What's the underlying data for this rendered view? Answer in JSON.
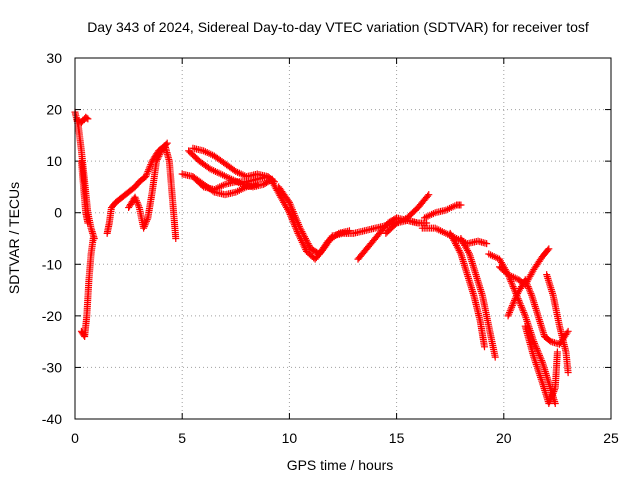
{
  "chart_data": {
    "type": "scatter",
    "title": "Day 343 of 2024, Sidereal Day-to-day VTEC variation (SDTVAR) for receiver tosf",
    "xlabel": "GPS time / hours",
    "ylabel": "SDTVAR / TECUs",
    "xlim": [
      0,
      25
    ],
    "ylim": [
      -40,
      30
    ],
    "xticks": [
      0,
      5,
      10,
      15,
      20,
      25
    ],
    "yticks": [
      -40,
      -30,
      -20,
      -10,
      0,
      10,
      20,
      30
    ],
    "grid": true,
    "marker": "plus",
    "series": [
      {
        "name": "SDTVAR",
        "color": "#ff0000",
        "tracks": [
          [
            [
              0.0,
              19.5
            ],
            [
              0.15,
              17
            ],
            [
              0.3,
              12
            ],
            [
              0.45,
              6
            ],
            [
              0.6,
              0
            ],
            [
              0.75,
              -3
            ],
            [
              0.9,
              -5
            ]
          ],
          [
            [
              0.1,
              18
            ],
            [
              0.3,
              17.5
            ],
            [
              0.5,
              18.5
            ],
            [
              0.6,
              18.2
            ]
          ],
          [
            [
              0.3,
              -23
            ],
            [
              0.45,
              -24
            ],
            [
              0.55,
              -20
            ],
            [
              0.65,
              -13
            ],
            [
              0.75,
              -8
            ],
            [
              0.85,
              -5
            ]
          ],
          [
            [
              0.3,
              10
            ],
            [
              0.4,
              5
            ],
            [
              0.5,
              0
            ],
            [
              0.6,
              -2
            ]
          ],
          [
            [
              1.5,
              -4
            ],
            [
              1.6,
              -2
            ],
            [
              1.7,
              1
            ],
            [
              1.9,
              2
            ],
            [
              2.2,
              3
            ],
            [
              2.5,
              4
            ],
            [
              2.8,
              5
            ],
            [
              3.0,
              6
            ],
            [
              3.3,
              7
            ],
            [
              3.6,
              10
            ],
            [
              3.9,
              12
            ],
            [
              4.2,
              13
            ],
            [
              4.4,
              10
            ],
            [
              4.5,
              5
            ],
            [
              4.6,
              0
            ],
            [
              4.7,
              -5
            ]
          ],
          [
            [
              2.5,
              1
            ],
            [
              2.8,
              3
            ],
            [
              3.0,
              1
            ],
            [
              3.2,
              -3
            ],
            [
              3.4,
              -1
            ],
            [
              3.6,
              4
            ],
            [
              3.8,
              10
            ],
            [
              4.1,
              12.5
            ],
            [
              4.3,
              13.5
            ]
          ],
          [
            [
              5.0,
              7.5
            ],
            [
              5.5,
              7
            ],
            [
              6.0,
              5
            ],
            [
              6.5,
              4.5
            ],
            [
              7.0,
              5.5
            ],
            [
              7.5,
              6
            ],
            [
              8.0,
              6
            ],
            [
              8.5,
              6.5
            ],
            [
              9.0,
              7
            ],
            [
              9.3,
              6
            ]
          ],
          [
            [
              5.3,
              12
            ],
            [
              5.8,
              10
            ],
            [
              6.3,
              8.5
            ],
            [
              6.8,
              7.5
            ],
            [
              7.3,
              6.5
            ],
            [
              7.8,
              5.5
            ],
            [
              8.3,
              5
            ],
            [
              8.8,
              5.5
            ],
            [
              9.2,
              6.5
            ]
          ],
          [
            [
              5.5,
              12.5
            ],
            [
              6.0,
              12
            ],
            [
              6.5,
              11
            ],
            [
              7.0,
              9.5
            ],
            [
              7.5,
              8
            ],
            [
              8.0,
              7
            ],
            [
              8.5,
              7.5
            ],
            [
              9.0,
              7
            ]
          ],
          [
            [
              5.5,
              7
            ],
            [
              6.0,
              5.5
            ],
            [
              6.5,
              4
            ],
            [
              7.0,
              3.5
            ],
            [
              7.5,
              4
            ],
            [
              8.0,
              5
            ],
            [
              8.5,
              5.5
            ]
          ],
          [
            [
              9.2,
              6
            ],
            [
              9.6,
              3
            ],
            [
              10.0,
              0
            ],
            [
              10.4,
              -4
            ],
            [
              10.8,
              -7.5
            ],
            [
              11.2,
              -9
            ],
            [
              11.6,
              -7
            ],
            [
              12.0,
              -4.5
            ],
            [
              12.5,
              -4
            ],
            [
              13.0,
              -4
            ],
            [
              13.5,
              -3.5
            ],
            [
              14.0,
              -3
            ],
            [
              14.5,
              -2.5
            ],
            [
              15.0,
              -2
            ],
            [
              15.5,
              -1.5
            ],
            [
              16.0,
              -2
            ]
          ],
          [
            [
              9.5,
              5
            ],
            [
              10.0,
              2
            ],
            [
              10.5,
              -3
            ],
            [
              11.0,
              -7
            ],
            [
              11.4,
              -8
            ],
            [
              11.8,
              -5.5
            ],
            [
              12.3,
              -4
            ],
            [
              12.8,
              -3.5
            ]
          ],
          [
            [
              13.2,
              -9
            ],
            [
              13.8,
              -6
            ],
            [
              14.2,
              -4
            ],
            [
              14.6,
              -2
            ],
            [
              15.0,
              -1
            ],
            [
              15.5,
              -1.5
            ],
            [
              16.0,
              -2
            ],
            [
              16.4,
              -2
            ]
          ],
          [
            [
              14.5,
              -4
            ],
            [
              15.0,
              -2
            ],
            [
              15.5,
              -1
            ],
            [
              16.0,
              1
            ],
            [
              16.5,
              3.5
            ]
          ],
          [
            [
              16.2,
              -3
            ],
            [
              16.8,
              -3
            ],
            [
              17.3,
              -4
            ],
            [
              17.8,
              -5
            ],
            [
              18.3,
              -6
            ],
            [
              18.8,
              -5.5
            ],
            [
              19.2,
              -6
            ]
          ],
          [
            [
              16.3,
              -1
            ],
            [
              16.8,
              0
            ],
            [
              17.3,
              0.5
            ],
            [
              17.8,
              1.5
            ],
            [
              18.0,
              1.5
            ]
          ],
          [
            [
              17.5,
              -4
            ],
            [
              18.0,
              -8
            ],
            [
              18.3,
              -12
            ],
            [
              18.6,
              -16
            ],
            [
              18.9,
              -21
            ],
            [
              19.1,
              -26
            ]
          ],
          [
            [
              18.0,
              -5
            ],
            [
              18.4,
              -8
            ],
            [
              18.7,
              -12
            ],
            [
              19.0,
              -16
            ],
            [
              19.3,
              -22
            ],
            [
              19.6,
              -28
            ]
          ],
          [
            [
              19.3,
              -8
            ],
            [
              19.8,
              -9
            ],
            [
              20.2,
              -12
            ],
            [
              20.6,
              -16
            ],
            [
              21.0,
              -20
            ],
            [
              21.4,
              -25
            ],
            [
              21.8,
              -29
            ],
            [
              22.1,
              -33
            ],
            [
              22.4,
              -37
            ]
          ],
          [
            [
              19.8,
              -10.5
            ],
            [
              20.2,
              -12
            ],
            [
              20.7,
              -13
            ],
            [
              21.0,
              -14
            ],
            [
              21.4,
              -11
            ],
            [
              21.8,
              -8.5
            ],
            [
              22.1,
              -7
            ]
          ],
          [
            [
              20.2,
              -20
            ],
            [
              20.6,
              -16
            ],
            [
              21.0,
              -13
            ],
            [
              21.3,
              -16
            ],
            [
              21.6,
              -20
            ],
            [
              21.9,
              -24
            ],
            [
              22.2,
              -25
            ],
            [
              22.6,
              -25.5
            ],
            [
              23.0,
              -23
            ]
          ],
          [
            [
              21.0,
              -22
            ],
            [
              21.4,
              -28
            ],
            [
              21.8,
              -33
            ],
            [
              22.1,
              -37
            ],
            [
              22.4,
              -34
            ],
            [
              22.5,
              -27
            ]
          ],
          [
            [
              22.0,
              -12
            ],
            [
              22.3,
              -16
            ],
            [
              22.6,
              -22
            ],
            [
              22.9,
              -27
            ],
            [
              23.0,
              -31
            ]
          ]
        ]
      }
    ]
  }
}
